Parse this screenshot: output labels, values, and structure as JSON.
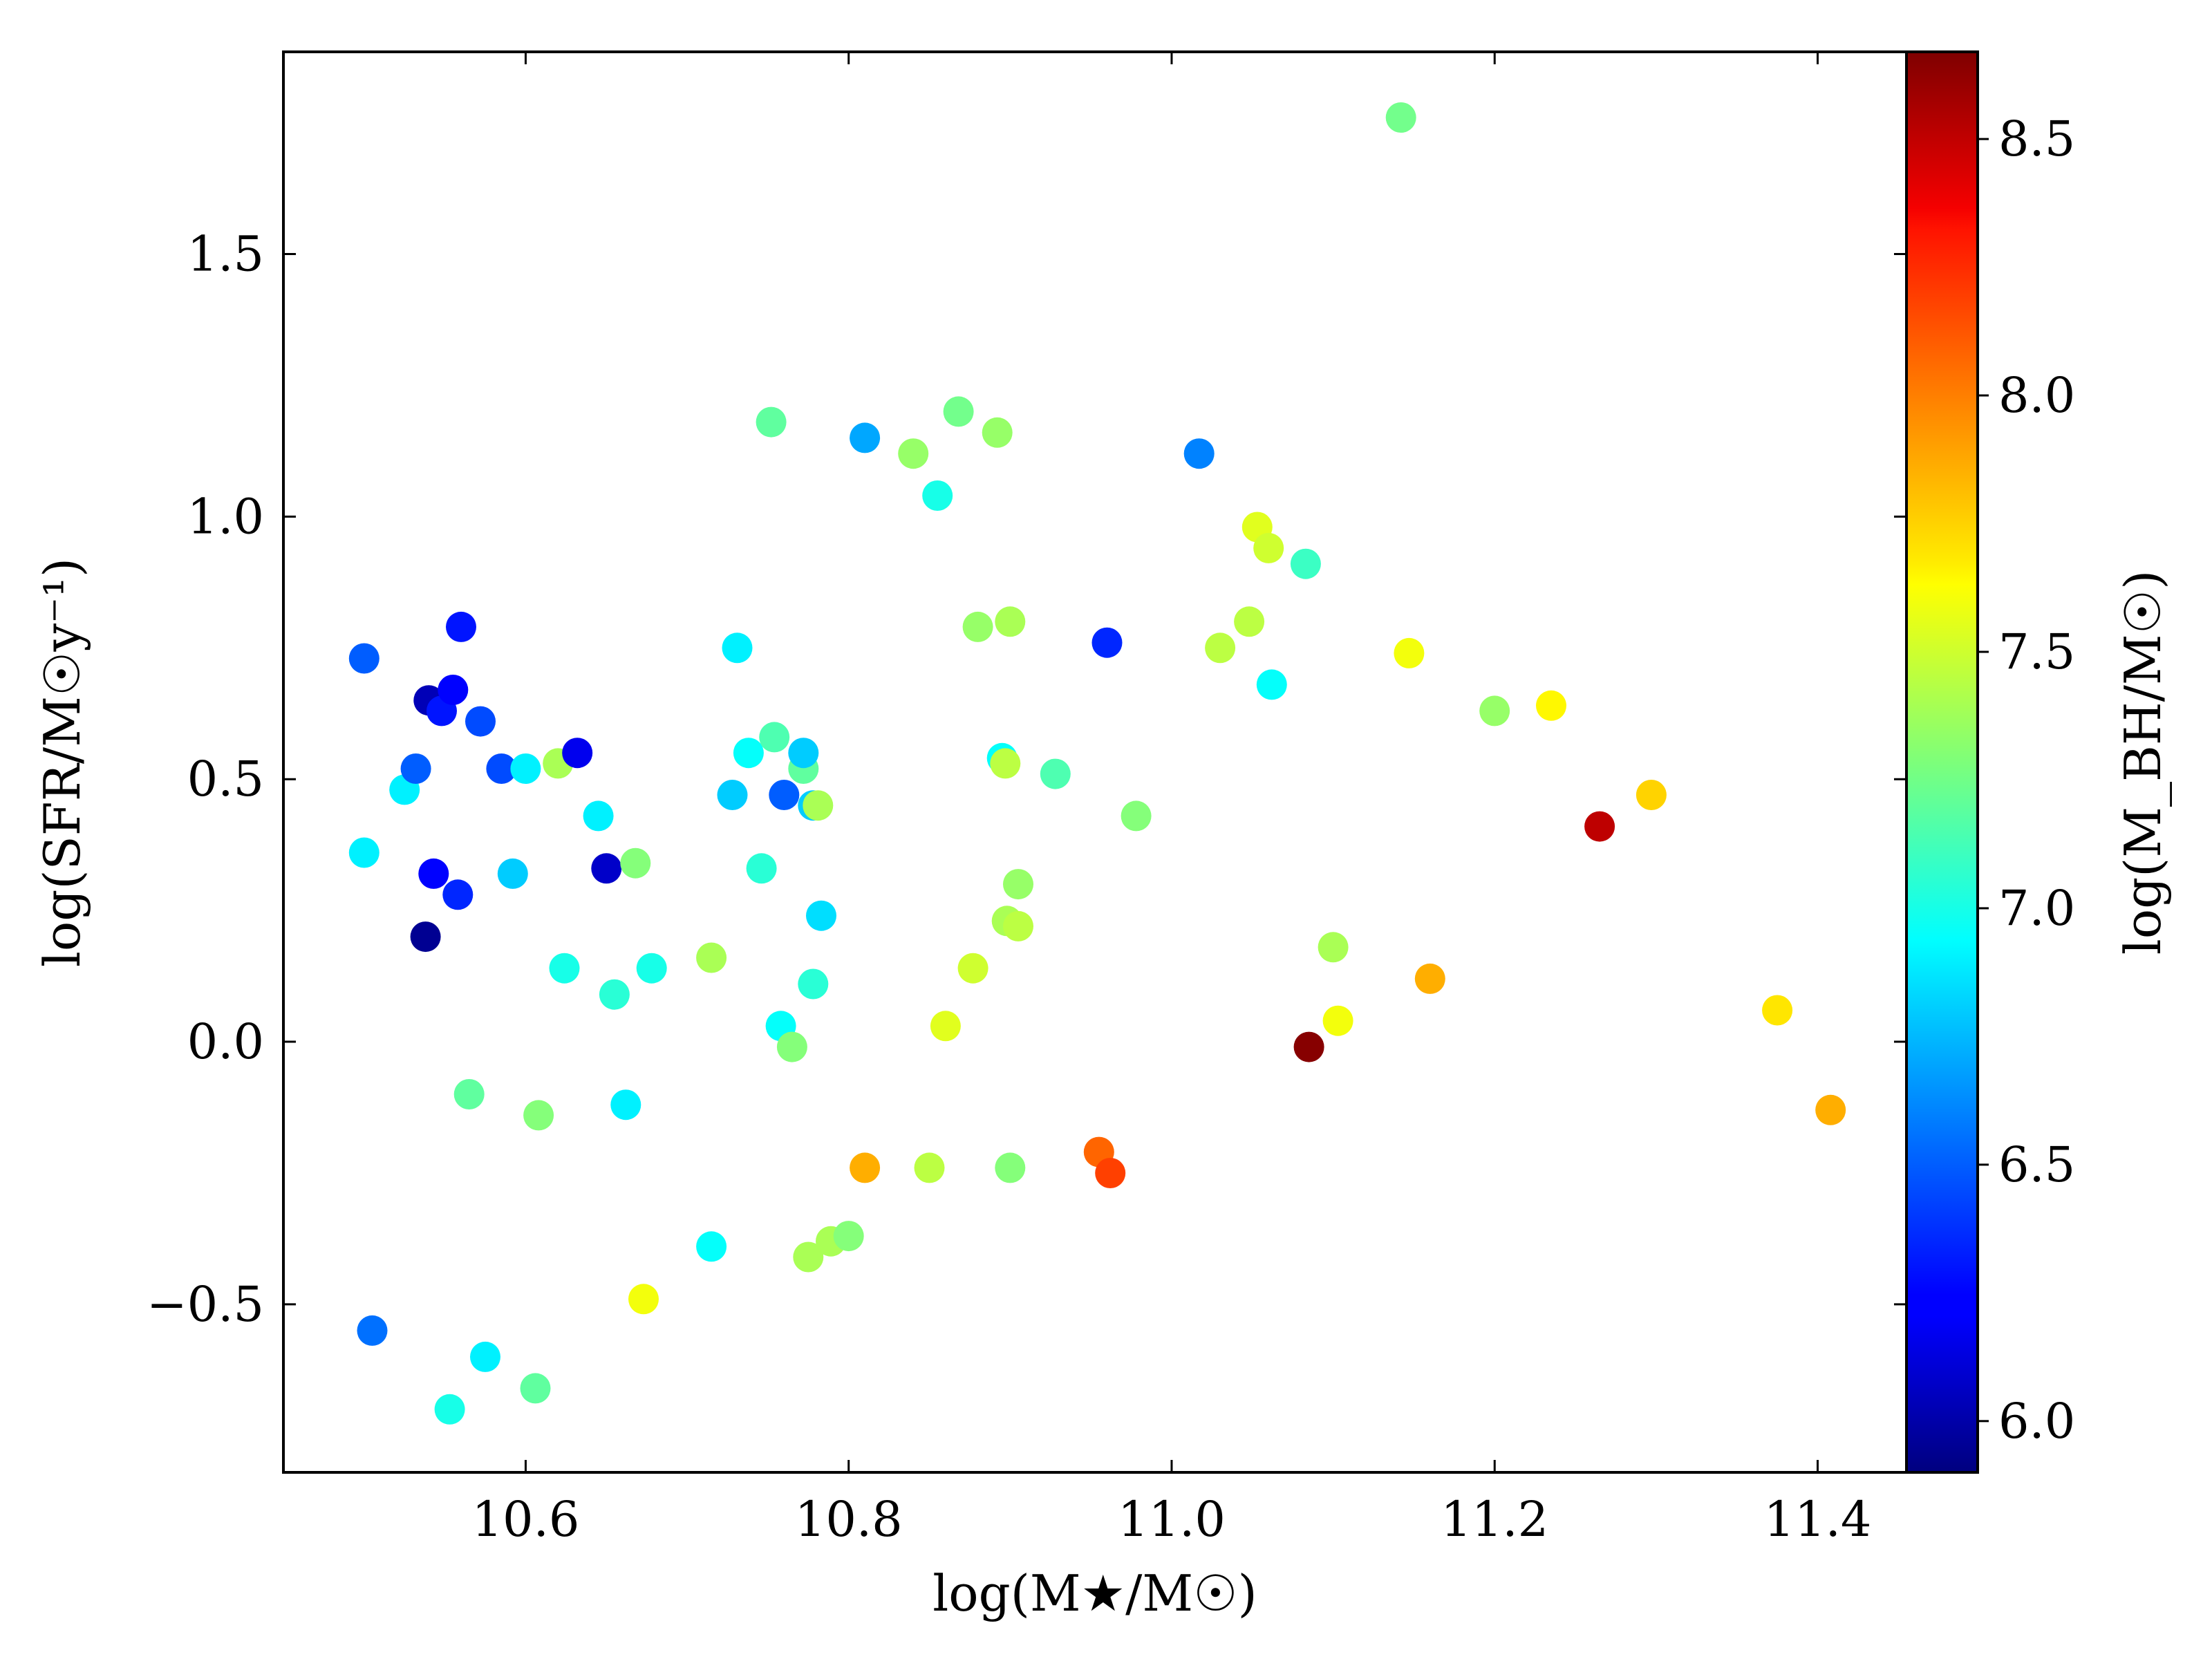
{
  "chart_data": {
    "type": "scatter",
    "title": "",
    "xlabel": "log(M★/M☉)",
    "ylabel": "log(SFR/M☉y⁻¹)",
    "colorbar_label": "log(M_BH/M☉)",
    "xlim": [
      10.45,
      11.455
    ],
    "ylim": [
      -0.82,
      1.885
    ],
    "clim": [
      5.9,
      8.67
    ],
    "xticks": [
      "10.6",
      "10.8",
      "11.0",
      "11.2",
      "11.4"
    ],
    "xtick_values": [
      10.6,
      10.8,
      11.0,
      11.2,
      11.4
    ],
    "yticks": [
      "−0.5",
      "0.0",
      "0.5",
      "1.0",
      "1.5"
    ],
    "ytick_values": [
      -0.5,
      0.0,
      0.5,
      1.0,
      1.5
    ],
    "cticks": [
      "6.0",
      "6.5",
      "7.0",
      "7.5",
      "8.0",
      "8.5"
    ],
    "ctick_values": [
      6.0,
      6.5,
      7.0,
      7.5,
      8.0,
      8.5
    ],
    "colormap": "jet",
    "grid": false,
    "points": [
      {
        "x": 10.5,
        "y": 0.73,
        "c": 6.5
      },
      {
        "x": 10.5,
        "y": 0.36,
        "c": 6.9
      },
      {
        "x": 10.505,
        "y": -0.55,
        "c": 6.55
      },
      {
        "x": 10.525,
        "y": 0.48,
        "c": 6.9
      },
      {
        "x": 10.532,
        "y": 0.52,
        "c": 6.5
      },
      {
        "x": 10.538,
        "y": 0.2,
        "c": 5.95
      },
      {
        "x": 10.54,
        "y": 0.65,
        "c": 6.05
      },
      {
        "x": 10.543,
        "y": 0.32,
        "c": 6.25
      },
      {
        "x": 10.548,
        "y": 0.63,
        "c": 6.3
      },
      {
        "x": 10.555,
        "y": 0.67,
        "c": 6.25
      },
      {
        "x": 10.553,
        "y": -0.7,
        "c": 7.0
      },
      {
        "x": 10.558,
        "y": 0.28,
        "c": 6.35
      },
      {
        "x": 10.56,
        "y": 0.79,
        "c": 6.3
      },
      {
        "x": 10.565,
        "y": -0.1,
        "c": 7.2
      },
      {
        "x": 10.572,
        "y": 0.61,
        "c": 6.45
      },
      {
        "x": 10.575,
        "y": -0.6,
        "c": 6.9
      },
      {
        "x": 10.585,
        "y": 0.52,
        "c": 6.45
      },
      {
        "x": 10.592,
        "y": 0.32,
        "c": 6.8
      },
      {
        "x": 10.6,
        "y": 0.52,
        "c": 6.9
      },
      {
        "x": 10.606,
        "y": -0.66,
        "c": 7.2
      },
      {
        "x": 10.608,
        "y": -0.14,
        "c": 7.3
      },
      {
        "x": 10.62,
        "y": 0.53,
        "c": 7.4
      },
      {
        "x": 10.624,
        "y": 0.14,
        "c": 7.0
      },
      {
        "x": 10.632,
        "y": 0.55,
        "c": 6.2
      },
      {
        "x": 10.645,
        "y": 0.43,
        "c": 6.9
      },
      {
        "x": 10.65,
        "y": 0.33,
        "c": 6.1
      },
      {
        "x": 10.655,
        "y": 0.09,
        "c": 7.05
      },
      {
        "x": 10.662,
        "y": -0.12,
        "c": 6.9
      },
      {
        "x": 10.668,
        "y": 0.34,
        "c": 7.3
      },
      {
        "x": 10.673,
        "y": -0.49,
        "c": 7.6
      },
      {
        "x": 10.678,
        "y": 0.14,
        "c": 7.0
      },
      {
        "x": 10.715,
        "y": 0.16,
        "c": 7.4
      },
      {
        "x": 10.715,
        "y": -0.39,
        "c": 6.95
      },
      {
        "x": 10.728,
        "y": 0.47,
        "c": 6.8
      },
      {
        "x": 10.731,
        "y": 0.75,
        "c": 6.9
      },
      {
        "x": 10.738,
        "y": 0.55,
        "c": 6.95
      },
      {
        "x": 10.746,
        "y": 0.33,
        "c": 7.05
      },
      {
        "x": 10.752,
        "y": 1.18,
        "c": 7.2
      },
      {
        "x": 10.754,
        "y": 0.58,
        "c": 7.15
      },
      {
        "x": 10.758,
        "y": 0.03,
        "c": 6.95
      },
      {
        "x": 10.76,
        "y": 0.47,
        "c": 6.5
      },
      {
        "x": 10.765,
        "y": -0.01,
        "c": 7.3
      },
      {
        "x": 10.772,
        "y": 0.52,
        "c": 7.2
      },
      {
        "x": 10.772,
        "y": 0.55,
        "c": 6.8
      },
      {
        "x": 10.775,
        "y": -0.41,
        "c": 7.4
      },
      {
        "x": 10.778,
        "y": 0.45,
        "c": 6.8
      },
      {
        "x": 10.778,
        "y": 0.11,
        "c": 7.05
      },
      {
        "x": 10.781,
        "y": 0.45,
        "c": 7.4
      },
      {
        "x": 10.783,
        "y": 0.24,
        "c": 6.85
      },
      {
        "x": 10.789,
        "y": -0.38,
        "c": 7.4
      },
      {
        "x": 10.8,
        "y": -0.37,
        "c": 7.3
      },
      {
        "x": 10.81,
        "y": 1.15,
        "c": 6.7
      },
      {
        "x": 10.81,
        "y": -0.24,
        "c": 7.85
      },
      {
        "x": 10.84,
        "y": 1.12,
        "c": 7.35
      },
      {
        "x": 10.85,
        "y": -0.24,
        "c": 7.45
      },
      {
        "x": 10.855,
        "y": 1.04,
        "c": 7.0
      },
      {
        "x": 10.86,
        "y": 0.03,
        "c": 7.55
      },
      {
        "x": 10.868,
        "y": 1.2,
        "c": 7.25
      },
      {
        "x": 10.877,
        "y": 0.14,
        "c": 7.5
      },
      {
        "x": 10.88,
        "y": 0.79,
        "c": 7.35
      },
      {
        "x": 10.892,
        "y": 1.16,
        "c": 7.35
      },
      {
        "x": 10.895,
        "y": 0.54,
        "c": 6.95
      },
      {
        "x": 10.897,
        "y": 0.53,
        "c": 7.45
      },
      {
        "x": 10.898,
        "y": 0.23,
        "c": 7.4
      },
      {
        "x": 10.9,
        "y": 0.8,
        "c": 7.4
      },
      {
        "x": 10.9,
        "y": -0.24,
        "c": 7.3
      },
      {
        "x": 10.905,
        "y": 0.3,
        "c": 7.35
      },
      {
        "x": 10.905,
        "y": 0.22,
        "c": 7.45
      },
      {
        "x": 10.928,
        "y": 0.51,
        "c": 7.15
      },
      {
        "x": 10.955,
        "y": -0.21,
        "c": 8.05
      },
      {
        "x": 10.96,
        "y": 0.76,
        "c": 6.35
      },
      {
        "x": 10.962,
        "y": -0.25,
        "c": 8.15
      },
      {
        "x": 10.978,
        "y": 0.43,
        "c": 7.3
      },
      {
        "x": 11.017,
        "y": 1.12,
        "c": 6.6
      },
      {
        "x": 11.03,
        "y": 0.75,
        "c": 7.45
      },
      {
        "x": 11.048,
        "y": 0.8,
        "c": 7.45
      },
      {
        "x": 11.053,
        "y": 0.98,
        "c": 7.55
      },
      {
        "x": 11.06,
        "y": 0.94,
        "c": 7.5
      },
      {
        "x": 11.062,
        "y": 0.68,
        "c": 6.95
      },
      {
        "x": 11.083,
        "y": 0.91,
        "c": 7.1
      },
      {
        "x": 11.085,
        "y": -0.01,
        "c": 8.65
      },
      {
        "x": 11.1,
        "y": 0.18,
        "c": 7.4
      },
      {
        "x": 11.103,
        "y": 0.04,
        "c": 7.6
      },
      {
        "x": 11.142,
        "y": 1.76,
        "c": 7.25
      },
      {
        "x": 11.147,
        "y": 0.74,
        "c": 7.6
      },
      {
        "x": 11.16,
        "y": 0.12,
        "c": 7.85
      },
      {
        "x": 11.2,
        "y": 0.63,
        "c": 7.35
      },
      {
        "x": 11.235,
        "y": 0.64,
        "c": 7.65
      },
      {
        "x": 11.265,
        "y": 0.41,
        "c": 8.5
      },
      {
        "x": 11.297,
        "y": 0.47,
        "c": 7.75
      },
      {
        "x": 11.375,
        "y": 0.06,
        "c": 7.7
      },
      {
        "x": 11.408,
        "y": -0.13,
        "c": 7.85
      }
    ]
  }
}
